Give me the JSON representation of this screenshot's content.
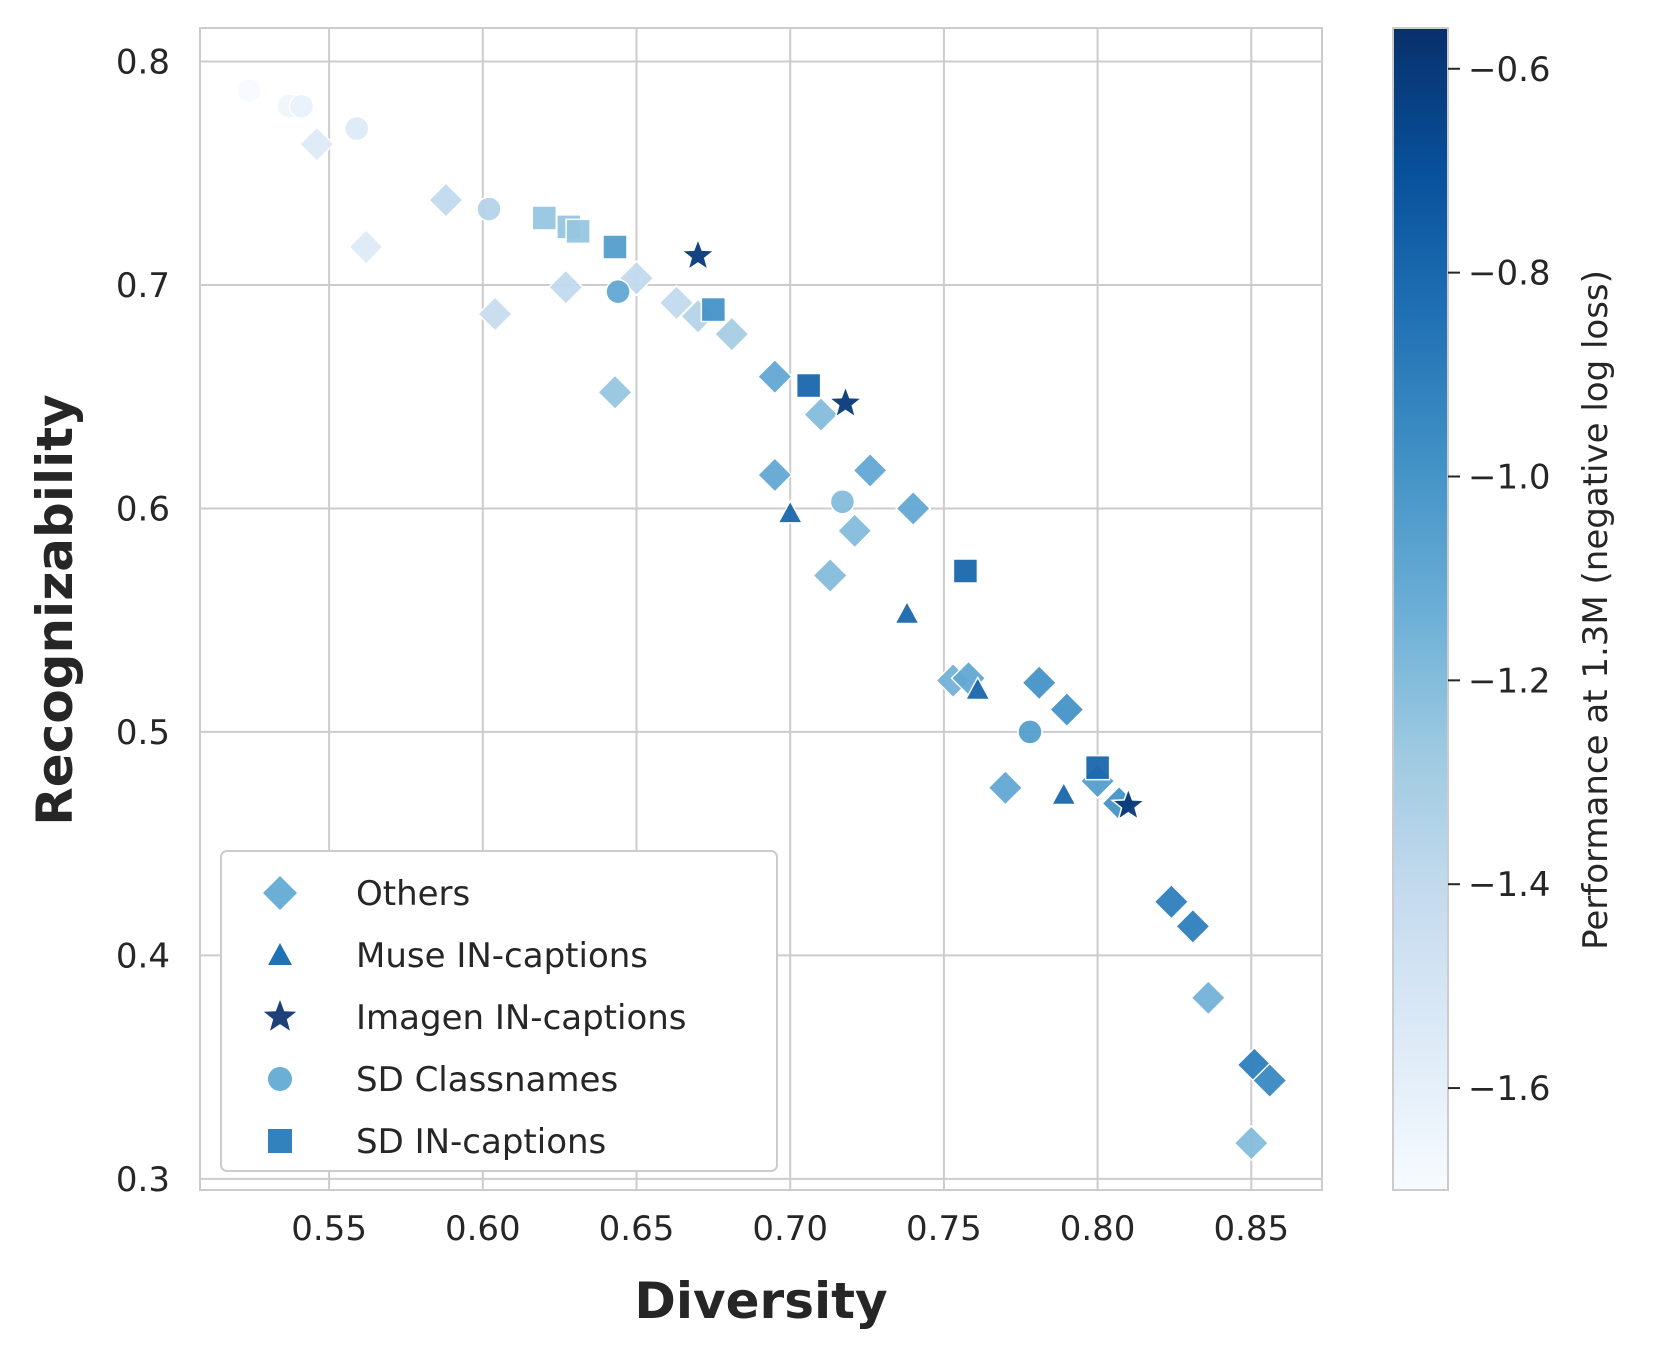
{
  "chart_data": {
    "type": "scatter",
    "xlabel": "Diversity",
    "ylabel": "Recognizability",
    "xlim": [
      0.508,
      0.873
    ],
    "ylim": [
      0.295,
      0.815
    ],
    "xticks": [
      0.55,
      0.6,
      0.65,
      0.7,
      0.75,
      0.8,
      0.85
    ],
    "xtick_labels": [
      "0.55",
      "0.60",
      "0.65",
      "0.70",
      "0.75",
      "0.80",
      "0.85"
    ],
    "yticks": [
      0.3,
      0.4,
      0.5,
      0.6,
      0.7,
      0.8
    ],
    "ytick_labels": [
      "0.3",
      "0.4",
      "0.5",
      "0.6",
      "0.7",
      "0.8"
    ],
    "grid": true,
    "legend_position": "lower-left",
    "colorbar": {
      "label": "Performance at 1.3M (negative log loss)",
      "range": [
        -1.7,
        -0.56
      ],
      "ticks": [
        -0.6,
        -0.8,
        -1.0,
        -1.2,
        -1.4,
        -1.6
      ],
      "tick_labels": [
        "−0.6",
        "−0.8",
        "−1.0",
        "−1.2",
        "−1.4",
        "−1.6"
      ],
      "colormap": "Blues",
      "color_stops": [
        "#f7fbff",
        "#deebf7",
        "#c6dbef",
        "#9ecae1",
        "#6baed6",
        "#4292c6",
        "#2171b5",
        "#08519c",
        "#08306b"
      ]
    },
    "series": [
      {
        "name": "Others",
        "marker": "diamond",
        "legend_color": "#6baed6",
        "points": [
          {
            "x": 0.546,
            "y": 0.763,
            "c": -1.55
          },
          {
            "x": 0.562,
            "y": 0.717,
            "c": -1.55
          },
          {
            "x": 0.588,
            "y": 0.738,
            "c": -1.4
          },
          {
            "x": 0.604,
            "y": 0.687,
            "c": -1.42
          },
          {
            "x": 0.627,
            "y": 0.699,
            "c": -1.4
          },
          {
            "x": 0.643,
            "y": 0.652,
            "c": -1.25
          },
          {
            "x": 0.65,
            "y": 0.703,
            "c": -1.4
          },
          {
            "x": 0.663,
            "y": 0.692,
            "c": -1.4
          },
          {
            "x": 0.67,
            "y": 0.686,
            "c": -1.35
          },
          {
            "x": 0.681,
            "y": 0.678,
            "c": -1.3
          },
          {
            "x": 0.695,
            "y": 0.659,
            "c": -1.1
          },
          {
            "x": 0.695,
            "y": 0.615,
            "c": -1.1
          },
          {
            "x": 0.71,
            "y": 0.642,
            "c": -1.2
          },
          {
            "x": 0.713,
            "y": 0.57,
            "c": -1.2
          },
          {
            "x": 0.721,
            "y": 0.59,
            "c": -1.2
          },
          {
            "x": 0.726,
            "y": 0.617,
            "c": -1.1
          },
          {
            "x": 0.74,
            "y": 0.6,
            "c": -1.1
          },
          {
            "x": 0.753,
            "y": 0.523,
            "c": -1.15
          },
          {
            "x": 0.758,
            "y": 0.524,
            "c": -1.1
          },
          {
            "x": 0.77,
            "y": 0.475,
            "c": -1.1
          },
          {
            "x": 0.781,
            "y": 0.522,
            "c": -1.0
          },
          {
            "x": 0.79,
            "y": 0.51,
            "c": -1.0
          },
          {
            "x": 0.8,
            "y": 0.478,
            "c": -1.05
          },
          {
            "x": 0.807,
            "y": 0.468,
            "c": -1.0
          },
          {
            "x": 0.824,
            "y": 0.424,
            "c": -0.9
          },
          {
            "x": 0.831,
            "y": 0.413,
            "c": -0.9
          },
          {
            "x": 0.836,
            "y": 0.381,
            "c": -1.15
          },
          {
            "x": 0.85,
            "y": 0.316,
            "c": -1.2
          },
          {
            "x": 0.851,
            "y": 0.351,
            "c": -0.9
          },
          {
            "x": 0.856,
            "y": 0.344,
            "c": -0.95
          }
        ]
      },
      {
        "name": "Muse IN-captions",
        "marker": "triangle",
        "legend_color": "#2171b5",
        "points": [
          {
            "x": 0.7,
            "y": 0.598,
            "c": -0.8
          },
          {
            "x": 0.738,
            "y": 0.553,
            "c": -0.8
          },
          {
            "x": 0.761,
            "y": 0.519,
            "c": -0.8
          },
          {
            "x": 0.789,
            "y": 0.472,
            "c": -0.8
          }
        ]
      },
      {
        "name": "Imagen IN-captions",
        "marker": "star",
        "legend_color": "#1f3f7a",
        "points": [
          {
            "x": 0.67,
            "y": 0.713,
            "c": -0.6
          },
          {
            "x": 0.718,
            "y": 0.647,
            "c": -0.6
          },
          {
            "x": 0.81,
            "y": 0.467,
            "c": -0.6
          }
        ]
      },
      {
        "name": "SD Classnames",
        "marker": "circle",
        "legend_color": "#6baed6",
        "points": [
          {
            "x": 0.524,
            "y": 0.787,
            "c": -1.7
          },
          {
            "x": 0.537,
            "y": 0.78,
            "c": -1.65
          },
          {
            "x": 0.541,
            "y": 0.78,
            "c": -1.62
          },
          {
            "x": 0.559,
            "y": 0.77,
            "c": -1.55
          },
          {
            "x": 0.602,
            "y": 0.734,
            "c": -1.35
          },
          {
            "x": 0.644,
            "y": 0.697,
            "c": -1.1
          },
          {
            "x": 0.717,
            "y": 0.603,
            "c": -1.2
          },
          {
            "x": 0.778,
            "y": 0.5,
            "c": -1.05
          }
        ]
      },
      {
        "name": "SD IN-captions",
        "marker": "square",
        "legend_color": "#3182bd",
        "points": [
          {
            "x": 0.62,
            "y": 0.73,
            "c": -1.25
          },
          {
            "x": 0.628,
            "y": 0.726,
            "c": -1.25
          },
          {
            "x": 0.631,
            "y": 0.724,
            "c": -1.25
          },
          {
            "x": 0.643,
            "y": 0.717,
            "c": -1.05
          },
          {
            "x": 0.675,
            "y": 0.689,
            "c": -1.0
          },
          {
            "x": 0.706,
            "y": 0.655,
            "c": -0.8
          },
          {
            "x": 0.757,
            "y": 0.572,
            "c": -0.8
          },
          {
            "x": 0.8,
            "y": 0.484,
            "c": -0.8
          }
        ]
      }
    ]
  }
}
